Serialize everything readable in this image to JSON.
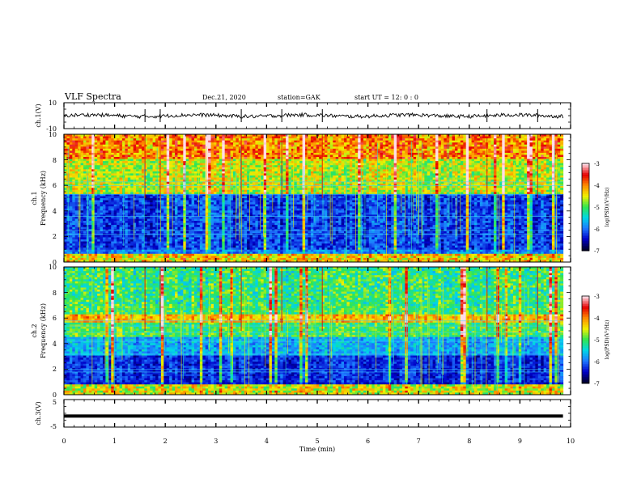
{
  "header": {
    "title": "VLF Spectra",
    "date": "Dec.21, 2020",
    "station": "station=GAK",
    "start": "start UT =  12: 0  : 0"
  },
  "colormap": {
    "stops": [
      "#00002a",
      "#0000c8",
      "#1e78ff",
      "#00d7e6",
      "#32e650",
      "#f0f000",
      "#ff8c00",
      "#e60000",
      "#ffdce6"
    ]
  },
  "chart_data": [
    {
      "panel": "ch1-waveform",
      "type": "line",
      "ylabel": "ch.1(V)",
      "ylim": [
        -10,
        10
      ],
      "ytick_labels": [
        "10",
        "-10"
      ],
      "xlim": [
        0,
        10
      ],
      "x_end": 9.85,
      "baseline": 0,
      "amplitude_range": [
        -2,
        2
      ],
      "spikes": [
        1.6,
        1.9,
        3.5,
        4.3,
        5.1,
        8.35,
        9.35
      ],
      "color": "#000000"
    },
    {
      "panel": "ch1-spectrogram",
      "type": "heatmap",
      "title": "ch.1",
      "ylabel": "Frequency (kHz)",
      "ylim": [
        0,
        10
      ],
      "ytick_labels": [
        "0",
        "2",
        "4",
        "6",
        "8",
        "10"
      ],
      "xlim": [
        0,
        10
      ],
      "x_end": 9.85,
      "colorbar_label": "log(PSD)(V²/Hz)",
      "colorbar_range": [
        -7,
        -3
      ],
      "colorbar_tick_labels": [
        "-3",
        "-4",
        "-5",
        "-6",
        "-7"
      ],
      "band_limits_khz": [
        1.0,
        5.4
      ]
    },
    {
      "panel": "ch2-spectrogram",
      "type": "heatmap",
      "title": "ch.2",
      "ylabel": "Frequency (kHz)",
      "ylim": [
        0,
        10
      ],
      "ytick_labels": [
        "0",
        "2",
        "4",
        "6",
        "8",
        "10"
      ],
      "xlim": [
        0,
        10
      ],
      "x_end": 9.85,
      "colorbar_label": "log(PSD)(V²/Hz)",
      "colorbar_range": [
        -7,
        -3
      ],
      "colorbar_tick_labels": [
        "-3",
        "-4",
        "-5",
        "-6",
        "-7"
      ],
      "enhanced_band_khz": 6.0
    },
    {
      "panel": "ch3-waveform",
      "type": "line",
      "ylabel": "ch.3(V)",
      "ylim": [
        -5,
        5
      ],
      "ytick_labels": [
        "5",
        "-5"
      ],
      "xlim": [
        0,
        10
      ],
      "x_end": 9.85,
      "value": -1.0,
      "xlabel": "Time (min)",
      "xtick_labels": [
        "0",
        "1",
        "2",
        "3",
        "4",
        "5",
        "6",
        "7",
        "8",
        "9",
        "10"
      ],
      "color": "#000000"
    }
  ]
}
